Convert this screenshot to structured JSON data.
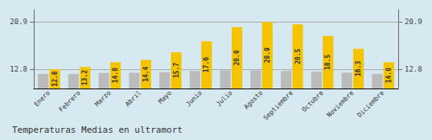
{
  "chart_data": {
    "type": "bar",
    "title": "Temperaturas Medias en ultramort",
    "categories": [
      "Enero",
      "Febrero",
      "Marzo",
      "Abril",
      "Mayo",
      "Junio",
      "Julio",
      "Agosto",
      "Septiembre",
      "Octubre",
      "Noviembre",
      "Diciembre"
    ],
    "series": [
      {
        "color": "#BBBBBB",
        "values": [
          12.0,
          12.0,
          12.2,
          12.2,
          12.3,
          12.5,
          12.6,
          12.6,
          12.5,
          12.4,
          12.2,
          12.0
        ]
      },
      {
        "color": "#F5C400",
        "data_labels": true,
        "values": [
          12.8,
          13.2,
          14.0,
          14.4,
          15.7,
          17.6,
          20.0,
          20.9,
          20.5,
          18.5,
          16.3,
          14.0
        ],
        "value_labels": [
          "12.8",
          "13.2",
          "14.0",
          "14.4",
          "15.7",
          "17.6",
          "20.0",
          "20.9",
          "20.5",
          "18.5",
          "16.3",
          "14.0"
        ]
      }
    ],
    "ylim": [
      9.5,
      23.0
    ],
    "yticks": [
      12.8,
      20.9
    ],
    "y2lim": [
      9.5,
      23.0
    ],
    "y2ticks": [
      12.8,
      20.9
    ],
    "grid": true
  }
}
